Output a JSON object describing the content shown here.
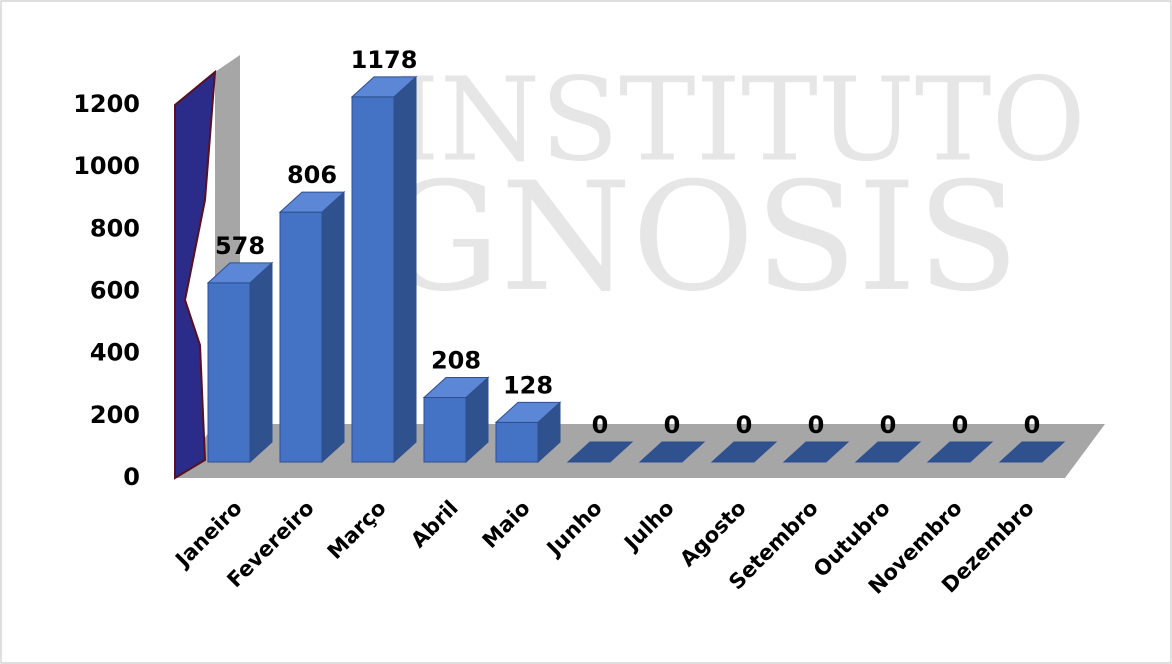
{
  "chart_data": {
    "type": "bar3d",
    "categories": [
      "Janeiro",
      "Fevereiro",
      "Março",
      "Abril",
      "Maio",
      "Junho",
      "Julho",
      "Agosto",
      "Setembro",
      "Outubro",
      "Novembro",
      "Dezembro"
    ],
    "values": [
      578,
      806,
      1178,
      208,
      128,
      0,
      0,
      0,
      0,
      0,
      0,
      0
    ],
    "color": "#4472c4",
    "ylim": [
      0,
      1200
    ],
    "yticks": [
      0,
      200,
      400,
      600,
      800,
      1000,
      1200
    ],
    "watermark": {
      "line1": "INSTITUTO",
      "line2": "GNOSIS"
    }
  }
}
